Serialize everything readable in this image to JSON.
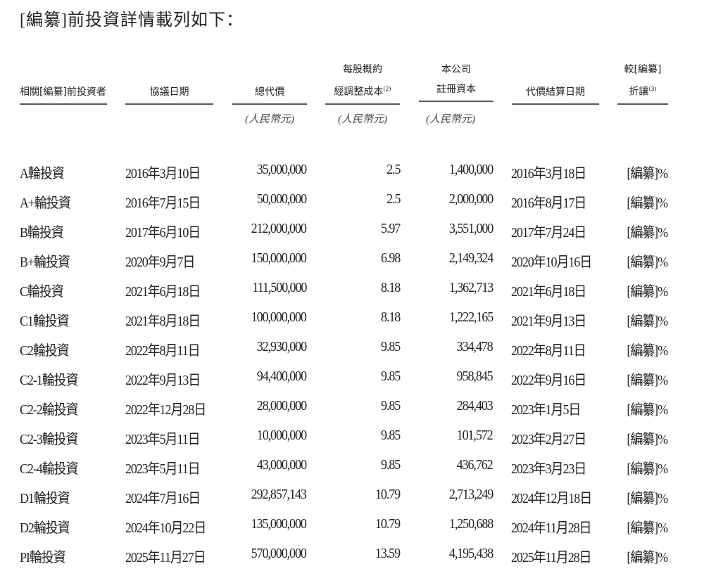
{
  "intro": "[編纂]前投資詳情載列如下：",
  "headers": {
    "investor": "相關[編纂]前投資者",
    "agreement_date": "協議日期",
    "consideration": "總代價",
    "cost_line1": "每股概約",
    "cost_line2": "經調整成本",
    "cost_note": "(2)",
    "capital_line1": "本公司",
    "capital_line2": "註冊資本",
    "settlement_date": "代價結算日期",
    "discount_line1": "較[編纂]",
    "discount_line2": "折讓",
    "discount_note": "(3)"
  },
  "units": {
    "consideration": "(人民幣元)",
    "cost": "(人民幣元)",
    "capital": "(人民幣元)"
  },
  "rows": [
    [
      "A輪投資",
      "2016年3月10日",
      "35,000,000",
      "2.5",
      "1,400,000",
      "2016年3月18日",
      "[編纂]%"
    ],
    [
      "A+輪投資",
      "2016年7月15日",
      "50,000,000",
      "2.5",
      "2,000,000",
      "2016年8月17日",
      "[編纂]%"
    ],
    [
      "B輪投資",
      "2017年6月10日",
      "212,000,000",
      "5.97",
      "3,551,000",
      "2017年7月24日",
      "[編纂]%"
    ],
    [
      "B+輪投資",
      "2020年9月7日",
      "150,000,000",
      "6.98",
      "2,149,324",
      "2020年10月16日",
      "[編纂]%"
    ],
    [
      "C輪投資",
      "2021年6月18日",
      "111,500,000",
      "8.18",
      "1,362,713",
      "2021年6月18日",
      "[編纂]%"
    ],
    [
      "C1輪投資",
      "2021年8月18日",
      "100,000,000",
      "8.18",
      "1,222,165",
      "2021年9月13日",
      "[編纂]%"
    ],
    [
      "C2輪投資",
      "2022年8月11日",
      "32,930,000",
      "9.85",
      "334,478",
      "2022年8月11日",
      "[編纂]%"
    ],
    [
      "C2-1輪投資",
      "2022年9月13日",
      "94,400,000",
      "9.85",
      "958,845",
      "2022年9月16日",
      "[編纂]%"
    ],
    [
      "C2-2輪投資",
      "2022年12月28日",
      "28,000,000",
      "9.85",
      "284,403",
      "2023年1月5日",
      "[編纂]%"
    ],
    [
      "C2-3輪投資",
      "2023年5月11日",
      "10,000,000",
      "9.85",
      "101,572",
      "2023年2月27日",
      "[編纂]%"
    ],
    [
      "C2-4輪投資",
      "2023年5月11日",
      "43,000,000",
      "9.85",
      "436,762",
      "2023年3月23日",
      "[編纂]%"
    ],
    [
      "D1輪投資",
      "2024年7月16日",
      "292,857,143",
      "10.79",
      "2,713,249",
      "2024年12月18日",
      "[編纂]%"
    ],
    [
      "D2輪投資",
      "2024年10月22日",
      "135,000,000",
      "10.79",
      "1,250,688",
      "2024年11月28日",
      "[編纂]%"
    ],
    [
      "PI輪投資",
      "2025年11月27日",
      "570,000,000",
      "13.59",
      "4,195,438",
      "2025年11月28日",
      "[編纂]%"
    ]
  ]
}
